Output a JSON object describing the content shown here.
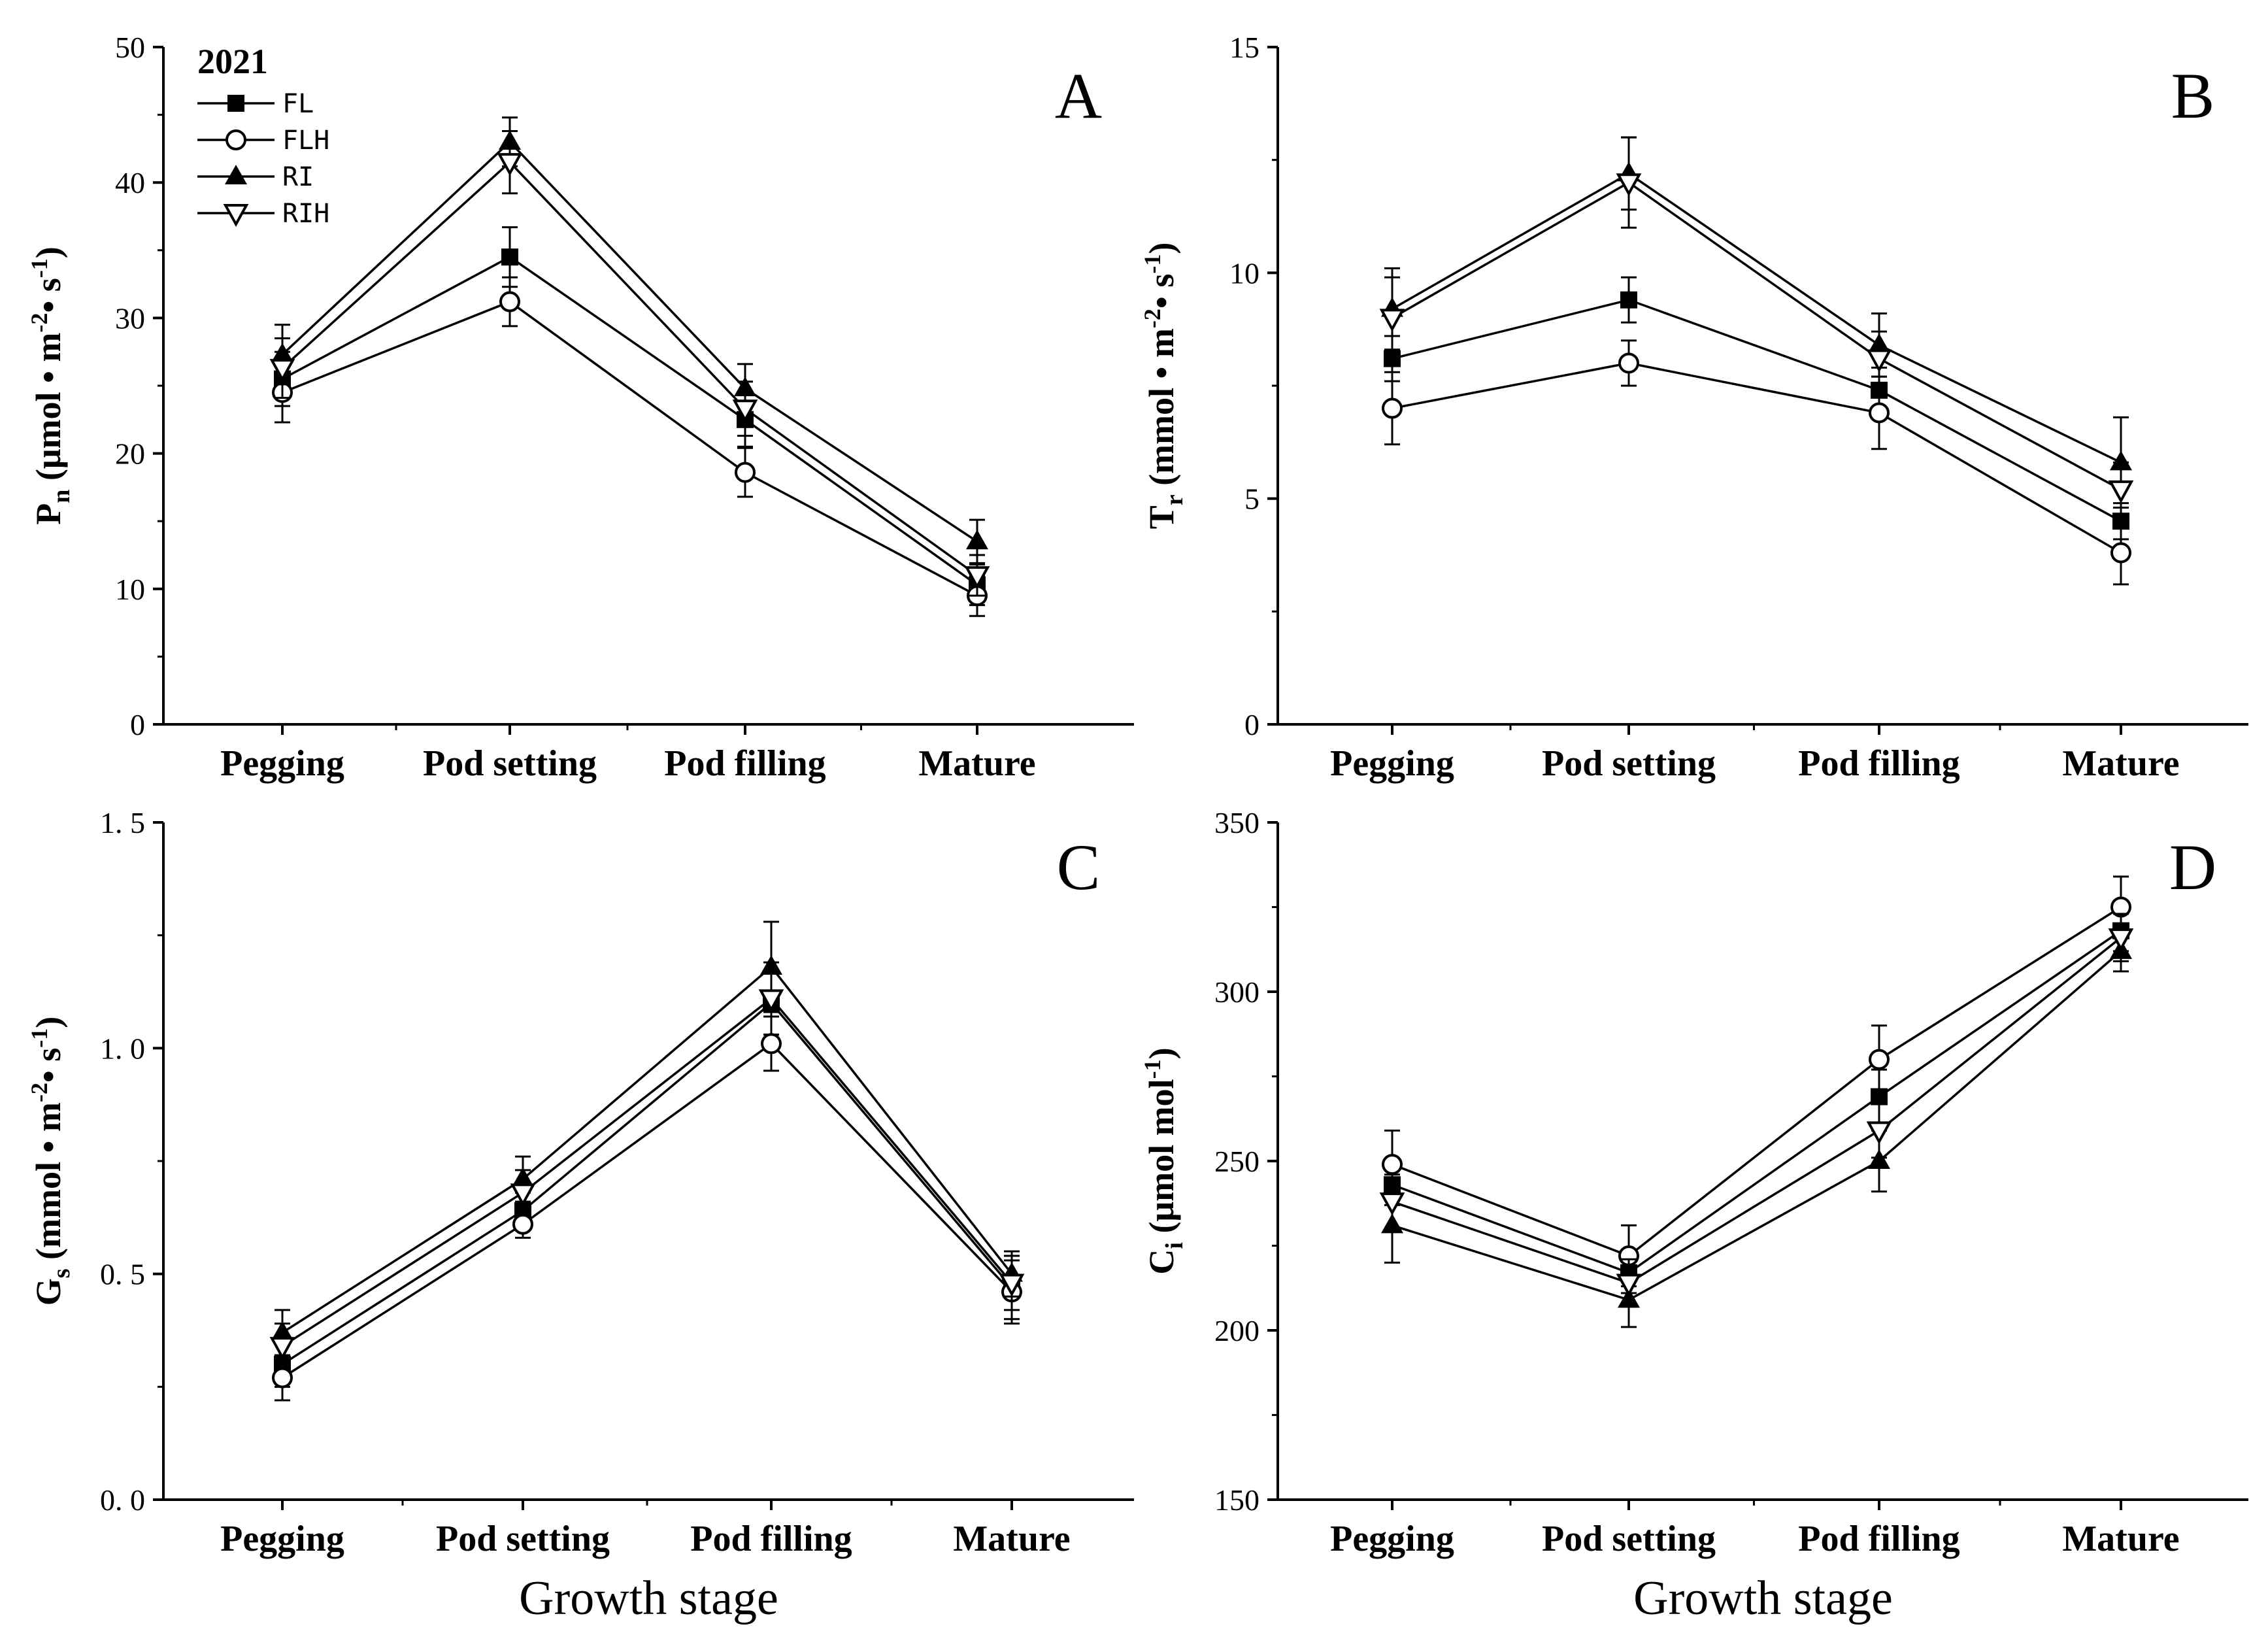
{
  "legend": {
    "title": "2021",
    "entries": [
      {
        "label": "FL",
        "marker": "square-filled"
      },
      {
        "label": "FLH",
        "marker": "circle-open"
      },
      {
        "label": "RI",
        "marker": "triangle-up-filled"
      },
      {
        "label": "RIH",
        "marker": "triangle-down-open"
      }
    ]
  },
  "colors": {
    "line": "#000000",
    "background": "#ffffff"
  },
  "chart_data": [
    {
      "panel": "A",
      "type": "line",
      "ylabel_main": "P",
      "ylabel_sub": "n",
      "ylabel_unit": "(μmol • m",
      "ylabel_exp1": "-2",
      "ylabel_mid": "• s",
      "ylabel_exp2": "-1",
      "ylabel_end": ")",
      "xlabel": "",
      "categories": [
        "Pegging",
        "Pod setting",
        "Pod filling",
        "Mature"
      ],
      "ylim": [
        0,
        50
      ],
      "yticks": [
        0,
        10,
        20,
        30,
        40,
        50
      ],
      "ytick_labels": [
        "0",
        "10",
        "20",
        "30",
        "40",
        "50"
      ],
      "series": [
        {
          "name": "FL",
          "values": [
            25.5,
            34.5,
            22.5,
            10.3
          ],
          "errors": [
            2.0,
            2.2,
            2.0,
            1.5
          ]
        },
        {
          "name": "FLH",
          "values": [
            24.5,
            31.2,
            18.6,
            9.5
          ],
          "errors": [
            2.2,
            1.8,
            1.8,
            1.5
          ]
        },
        {
          "name": "RI",
          "values": [
            27.3,
            43.0,
            24.8,
            13.5
          ],
          "errors": [
            2.2,
            1.8,
            1.8,
            1.6
          ]
        },
        {
          "name": "RIH",
          "values": [
            26.3,
            41.5,
            23.3,
            11.0
          ],
          "errors": [
            2.2,
            2.3,
            2.0,
            1.5
          ]
        }
      ]
    },
    {
      "panel": "B",
      "type": "line",
      "ylabel_main": "T",
      "ylabel_sub": "r",
      "ylabel_unit": "(mmol • m",
      "ylabel_exp1": "-2",
      "ylabel_mid": "• s",
      "ylabel_exp2": "-1",
      "ylabel_end": ")",
      "xlabel": "",
      "categories": [
        "Pegging",
        "Pod setting",
        "Pod filling",
        "Mature"
      ],
      "ylim": [
        0,
        15
      ],
      "yticks": [
        0,
        5,
        10,
        15
      ],
      "ytick_labels": [
        "0",
        "5",
        "10",
        "15"
      ],
      "series": [
        {
          "name": "FL",
          "values": [
            8.1,
            9.4,
            7.4,
            4.5
          ],
          "errors": [
            0.5,
            0.5,
            0.5,
            0.4
          ]
        },
        {
          "name": "FLH",
          "values": [
            7.0,
            8.0,
            6.9,
            3.8
          ],
          "errors": [
            0.8,
            0.5,
            0.8,
            0.7
          ]
        },
        {
          "name": "RI",
          "values": [
            9.2,
            12.2,
            8.4,
            5.8
          ],
          "errors": [
            0.9,
            0.8,
            0.7,
            1.0
          ]
        },
        {
          "name": "RIH",
          "values": [
            9.0,
            12.0,
            8.1,
            5.2
          ],
          "errors": [
            0.9,
            1.0,
            0.6,
            0.6
          ]
        }
      ]
    },
    {
      "panel": "C",
      "type": "line",
      "ylabel_main": "G",
      "ylabel_sub": "s",
      "ylabel_unit": "(mmol • m",
      "ylabel_exp1": "-2",
      "ylabel_mid": "• s",
      "ylabel_exp2": "-1",
      "ylabel_end": ")",
      "xlabel": "Growth stage",
      "categories": [
        "Pegging",
        "Pod setting",
        "Pod filling",
        "Mature"
      ],
      "ylim": [
        0.0,
        1.5
      ],
      "yticks": [
        0.0,
        0.5,
        1.0,
        1.5
      ],
      "ytick_labels": [
        "0. 0",
        "0. 5",
        "1. 0",
        "1. 5"
      ],
      "series": [
        {
          "name": "FL",
          "values": [
            0.3,
            0.64,
            1.1,
            0.47
          ],
          "errors": [
            0.05,
            0.04,
            0.07,
            0.07
          ]
        },
        {
          "name": "FLH",
          "values": [
            0.27,
            0.61,
            1.01,
            0.46
          ],
          "errors": [
            0.05,
            0.03,
            0.06,
            0.07
          ]
        },
        {
          "name": "RI",
          "values": [
            0.37,
            0.71,
            1.18,
            0.5
          ],
          "errors": [
            0.05,
            0.05,
            0.1,
            0.05
          ]
        },
        {
          "name": "RIH",
          "values": [
            0.34,
            0.68,
            1.11,
            0.48
          ],
          "errors": [
            0.05,
            0.05,
            0.08,
            0.06
          ]
        }
      ]
    },
    {
      "panel": "D",
      "type": "line",
      "ylabel_main": "C",
      "ylabel_sub": "i",
      "ylabel_unit": "(μmol mol",
      "ylabel_exp1": "-1",
      "ylabel_mid": "",
      "ylabel_exp2": "",
      "ylabel_end": ")",
      "xlabel": "Growth stage",
      "categories": [
        "Pegging",
        "Pod setting",
        "Pod filling",
        "Mature"
      ],
      "ylim": [
        150,
        350
      ],
      "yticks": [
        150,
        200,
        250,
        300,
        350
      ],
      "ytick_labels": [
        "150",
        "200",
        "250",
        "300",
        "350"
      ],
      "series": [
        {
          "name": "FL",
          "values": [
            243,
            217,
            269,
            318
          ],
          "errors": [
            6,
            6,
            8,
            6
          ]
        },
        {
          "name": "FLH",
          "values": [
            249,
            222,
            280,
            325
          ],
          "errors": [
            10,
            9,
            10,
            9
          ]
        },
        {
          "name": "RI",
          "values": [
            231,
            209,
            250,
            312
          ],
          "errors": [
            11,
            8,
            9,
            6
          ]
        },
        {
          "name": "RIH",
          "values": [
            238,
            214,
            259,
            316
          ],
          "errors": [
            8,
            7,
            8,
            7
          ]
        }
      ]
    }
  ]
}
